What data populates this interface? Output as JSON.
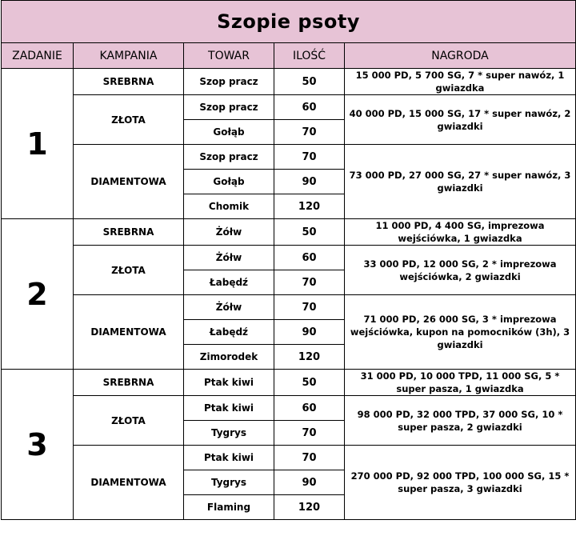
{
  "title": "Szopie psoty",
  "headers": {
    "zadanie": "ZADANIE",
    "kampania": "KAMPANIA",
    "towar": "TOWAR",
    "ilosc": "ILOŚĆ",
    "nagroda": "NAGRODA"
  },
  "zadania": [
    {
      "numer": "1",
      "kampanie": [
        {
          "nazwa": "SREBRNA",
          "towary": [
            {
              "nazwa": "Szop pracz",
              "ilosc": "50"
            }
          ],
          "nagroda": "15 000 PD, 5 700 SG, 7 * super nawóz, 1 gwiazdka"
        },
        {
          "nazwa": "ZŁOTA",
          "towary": [
            {
              "nazwa": "Szop pracz",
              "ilosc": "60"
            },
            {
              "nazwa": "Gołąb",
              "ilosc": "70"
            }
          ],
          "nagroda": "40 000 PD, 15 000 SG, 17 * super nawóz, 2 gwiazdki"
        },
        {
          "nazwa": "DIAMENTOWA",
          "towary": [
            {
              "nazwa": "Szop pracz",
              "ilosc": "70"
            },
            {
              "nazwa": "Gołąb",
              "ilosc": "90"
            },
            {
              "nazwa": "Chomik",
              "ilosc": "120"
            }
          ],
          "nagroda": "73 000 PD, 27 000 SG, 27 * super nawóz, 3 gwiazdki"
        }
      ]
    },
    {
      "numer": "2",
      "kampanie": [
        {
          "nazwa": "SREBRNA",
          "towary": [
            {
              "nazwa": "Żółw",
              "ilosc": "50"
            }
          ],
          "nagroda": "11 000 PD, 4 400 SG, imprezowa wejściówka, 1 gwiazdka"
        },
        {
          "nazwa": "ZŁOTA",
          "towary": [
            {
              "nazwa": "Żółw",
              "ilosc": "60"
            },
            {
              "nazwa": "Łabędź",
              "ilosc": "70"
            }
          ],
          "nagroda": "33 000 PD, 12 000 SG, 2 * imprezowa wejściówka, 2 gwiazdki"
        },
        {
          "nazwa": "DIAMENTOWA",
          "towary": [
            {
              "nazwa": "Żółw",
              "ilosc": "70"
            },
            {
              "nazwa": "Łabędź",
              "ilosc": "90"
            },
            {
              "nazwa": "Zimorodek",
              "ilosc": "120"
            }
          ],
          "nagroda": "71 000 PD, 26 000 SG, 3 * imprezowa wejściówka, kupon na pomocników (3h), 3 gwiazdki"
        }
      ]
    },
    {
      "numer": "3",
      "kampanie": [
        {
          "nazwa": "SREBRNA",
          "towary": [
            {
              "nazwa": "Ptak kiwi",
              "ilosc": "50"
            }
          ],
          "nagroda": "31 000 PD, 10 000 TPD, 11 000 SG, 5 * super pasza, 1 gwiazdka"
        },
        {
          "nazwa": "ZŁOTA",
          "towary": [
            {
              "nazwa": "Ptak kiwi",
              "ilosc": "60"
            },
            {
              "nazwa": "Tygrys",
              "ilosc": "70"
            }
          ],
          "nagroda": "98 000 PD, 32 000 TPD, 37 000 SG, 10 * super pasza, 2 gwiazdki"
        },
        {
          "nazwa": "DIAMENTOWA",
          "towary": [
            {
              "nazwa": "Ptak kiwi",
              "ilosc": "70"
            },
            {
              "nazwa": "Tygrys",
              "ilosc": "90"
            },
            {
              "nazwa": "Flaming",
              "ilosc": "120"
            }
          ],
          "nagroda": "270 000 PD, 92 000 TPD, 100 000 SG, 15 * super pasza, 3 gwiazdki"
        }
      ]
    }
  ]
}
